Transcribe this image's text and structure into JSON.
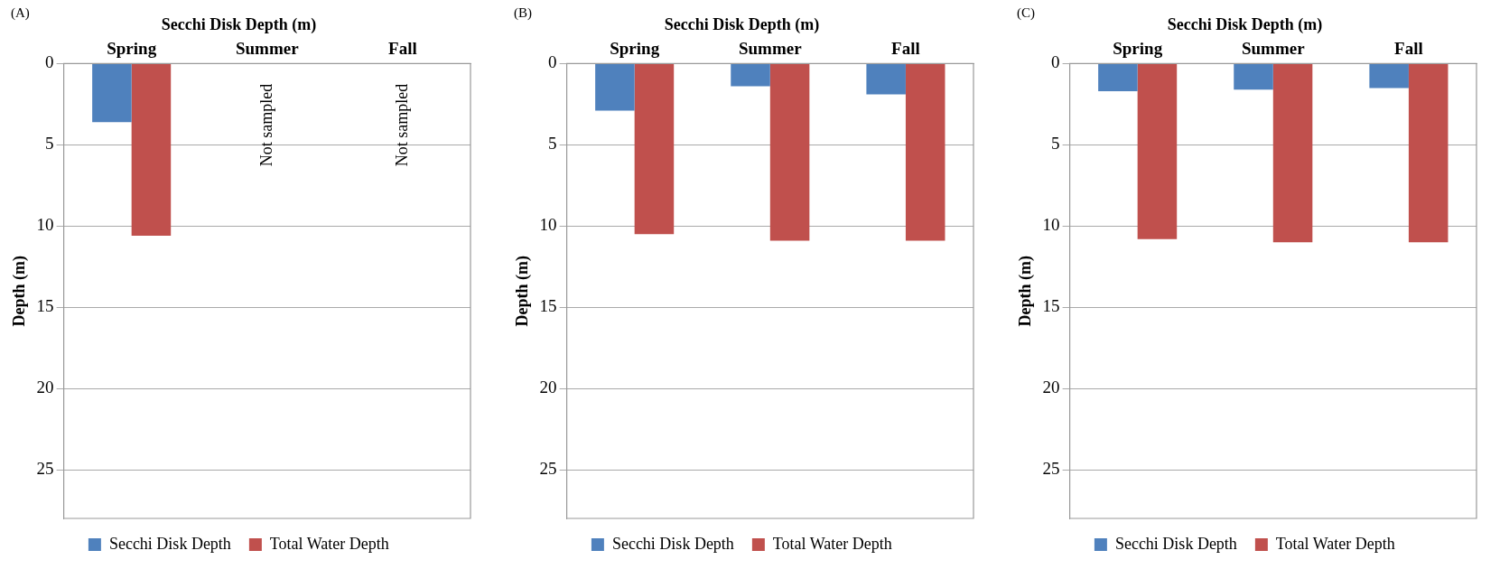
{
  "chart_data": [
    {
      "type": "bar",
      "title": "Secchi Disk Depth (m)",
      "ylabel": "Depth (m)",
      "categories": [
        "Spring",
        "Summer",
        "Fall"
      ],
      "series": [
        {
          "name": "Secchi Disk Depth",
          "color": "#4f81bd",
          "values": [
            3.6,
            null,
            null
          ]
        },
        {
          "name": "Total Water Depth",
          "color": "#c0504d",
          "values": [
            10.6,
            null,
            null
          ]
        }
      ],
      "ylim": [
        28,
        0
      ],
      "yticks": [
        0,
        5,
        10,
        15,
        20,
        25
      ],
      "grid": "y",
      "legend": "bottom",
      "annotations": [
        "(A)",
        "Not sampled",
        "Not sampled"
      ]
    },
    {
      "type": "bar",
      "title": "Secchi Disk Depth (m)",
      "ylabel": "Depth (m)",
      "categories": [
        "Spring",
        "Summer",
        "Fall"
      ],
      "series": [
        {
          "name": "Secchi Disk Depth",
          "color": "#4f81bd",
          "values": [
            2.9,
            1.4,
            1.9
          ]
        },
        {
          "name": "Total Water Depth",
          "color": "#c0504d",
          "values": [
            10.5,
            10.9,
            10.9
          ]
        }
      ],
      "ylim": [
        28,
        0
      ],
      "yticks": [
        0,
        5,
        10,
        15,
        20,
        25
      ],
      "grid": "y",
      "legend": "bottom",
      "annotations": [
        "(B)"
      ]
    },
    {
      "type": "bar",
      "title": "Secchi Disk Depth (m)",
      "ylabel": "Depth (m)",
      "categories": [
        "Spring",
        "Summer",
        "Fall"
      ],
      "series": [
        {
          "name": "Secchi Disk Depth",
          "color": "#4f81bd",
          "values": [
            1.7,
            1.6,
            1.5
          ]
        },
        {
          "name": "Total Water Depth",
          "color": "#c0504d",
          "values": [
            10.8,
            11.0,
            11.0
          ]
        }
      ],
      "ylim": [
        28,
        0
      ],
      "yticks": [
        0,
        5,
        10,
        15,
        20,
        25
      ],
      "grid": "y",
      "legend": "bottom",
      "annotations": [
        "(C)"
      ]
    }
  ]
}
